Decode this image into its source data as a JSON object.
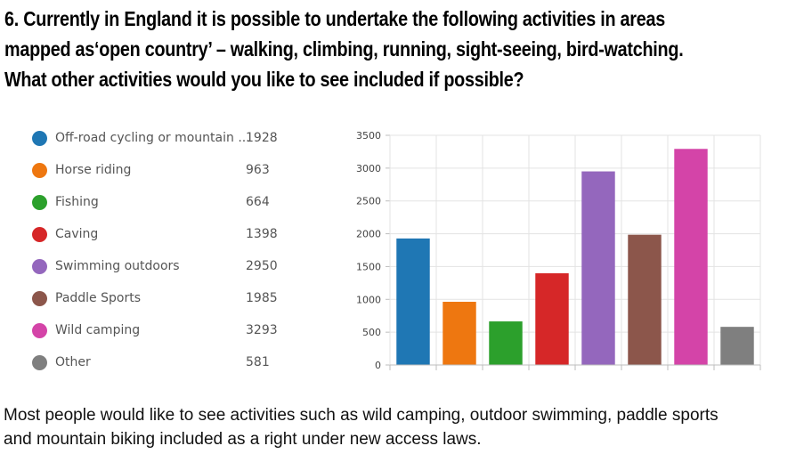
{
  "question": {
    "lines": [
      "6. Currently in England it is possible to undertake the following activities in areas",
      "mapped as‘open country’ – walking, climbing, running, sight-seeing, bird-watching.",
      "What other activities would you like to see included if possible?"
    ]
  },
  "summary": {
    "lines": [
      "Most people would like to see activities such as wild camping, outdoor swimming, paddle sports",
      "and mountain biking included as a right under new access laws."
    ]
  },
  "legend": [
    {
      "label": "Off-road cycling or mountain ...",
      "value": "1928",
      "color": "#1f77b4"
    },
    {
      "label": "Horse riding",
      "value": "963",
      "color": "#ee7710"
    },
    {
      "label": "Fishing",
      "value": "664",
      "color": "#2ca02c"
    },
    {
      "label": "Caving",
      "value": "1398",
      "color": "#d62728"
    },
    {
      "label": "Swimming outdoors",
      "value": "2950",
      "color": "#9467bd"
    },
    {
      "label": "Paddle Sports",
      "value": "1985",
      "color": "#8c564b"
    },
    {
      "label": "Wild camping",
      "value": "3293",
      "color": "#d444a8"
    },
    {
      "label": "Other",
      "value": "581",
      "color": "#7f7f7f"
    }
  ],
  "chart_data": {
    "type": "bar",
    "categories": [
      "Off-road cycling or mountain ...",
      "Horse riding",
      "Fishing",
      "Caving",
      "Swimming outdoors",
      "Paddle Sports",
      "Wild camping",
      "Other"
    ],
    "values": [
      1928,
      963,
      664,
      1398,
      2950,
      1985,
      3293,
      581
    ],
    "colors": [
      "#1f77b4",
      "#ee7710",
      "#2ca02c",
      "#d62728",
      "#9467bd",
      "#8c564b",
      "#d444a8",
      "#7f7f7f"
    ],
    "ylim": [
      0,
      3500
    ],
    "yticks": [
      "0",
      "500",
      "1000",
      "1500",
      "2000",
      "2500",
      "3000",
      "3500"
    ],
    "title": "",
    "xlabel": "",
    "ylabel": "",
    "grid": true,
    "legend_position": "left"
  }
}
